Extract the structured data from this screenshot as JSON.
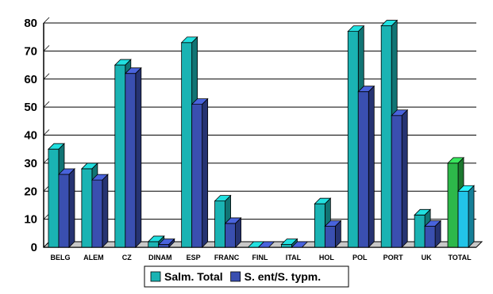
{
  "chart_data": {
    "type": "bar",
    "style": "3d-clustered",
    "categories": [
      "BELG",
      "ALEM",
      "CZ",
      "DINAM",
      "ESP",
      "FRANC",
      "FINL",
      "ITAL",
      "HOL",
      "POL",
      "PORT",
      "UK",
      "TOTAL"
    ],
    "series": [
      {
        "name": "Salm. Total",
        "values": [
          35,
          28,
          65,
          2,
          73,
          16.5,
          0,
          1,
          15.5,
          77,
          79,
          11.5,
          30
        ],
        "color": "#1ab3b3",
        "total_color": "#2db84a"
      },
      {
        "name": "S. ent/S. typm.",
        "values": [
          26,
          24,
          62,
          1,
          51,
          8.5,
          0,
          0,
          7.5,
          55.5,
          47,
          7.5,
          20
        ],
        "color": "#3a4fb0",
        "total_color": "#22c4e8"
      }
    ],
    "yticks": [
      "0",
      "10",
      "20",
      "30",
      "40",
      "50",
      "60",
      "70",
      "80"
    ],
    "ylim": [
      0,
      80
    ],
    "grid": true,
    "legend": "bottom",
    "title": "",
    "xlabel": "",
    "ylabel": ""
  }
}
